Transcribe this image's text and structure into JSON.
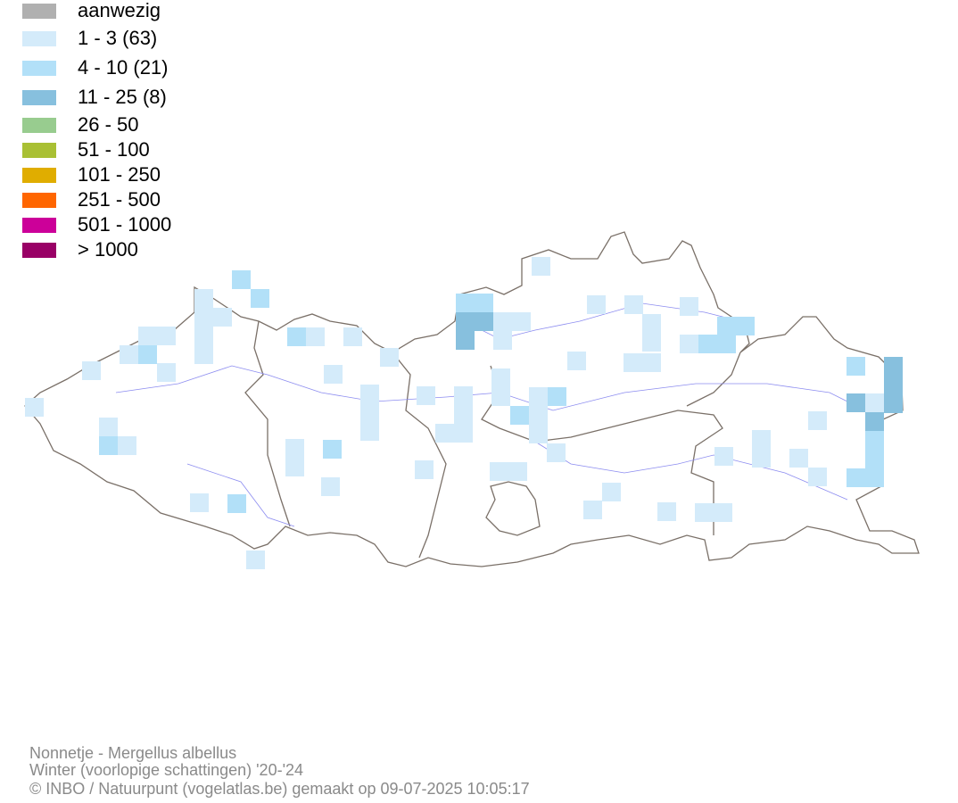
{
  "legend": [
    {
      "label": "aanwezig",
      "color": "#b0b0b0"
    },
    {
      "label": "1 - 3 (63)",
      "color": "#d4ebfa"
    },
    {
      "label": "4 - 10 (21)",
      "color": "#b2e0f8"
    },
    {
      "label": "11 - 25 (8)",
      "color": "#87c0de"
    },
    {
      "label": "26 - 50",
      "color": "#98cc8f"
    },
    {
      "label": "51 - 100",
      "color": "#a9c034"
    },
    {
      "label": "101 - 250",
      "color": "#e0ad00"
    },
    {
      "label": "251 - 500",
      "color": "#ff6600"
    },
    {
      "label": "501 - 1000",
      "color": "#cc0099"
    },
    {
      "label": "> 1000",
      "color": "#990066"
    }
  ],
  "footer": {
    "species": "Nonnetje - Mergellus albellus",
    "period": "Winter (voorlopige schattingen) '20-'24",
    "credit": "© INBO / Natuurpunt (vogelatlas.be) gemaakt op 09-07-2025 10:05:17"
  }
}
